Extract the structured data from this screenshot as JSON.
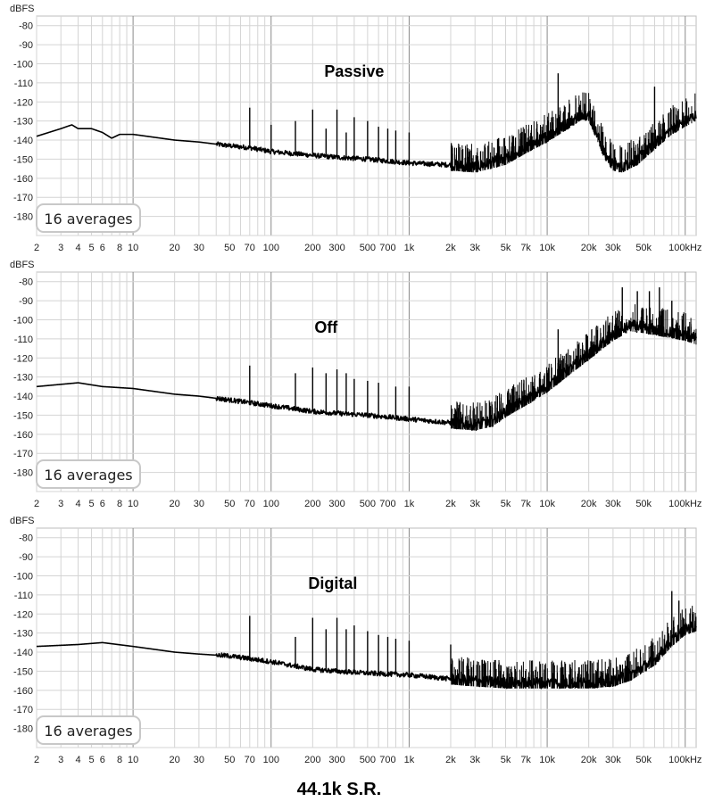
{
  "caption": "44.1k S.R.",
  "chart_data": [
    {
      "type": "line",
      "title": "Passive",
      "ylabel": "dBFS",
      "badge": "16 averages",
      "x_scale": "log",
      "xlim": [
        2,
        120000
      ],
      "ylim": [
        -190,
        -75
      ],
      "yticks": [
        -80,
        -90,
        -100,
        -110,
        -120,
        -130,
        -140,
        -150,
        -160,
        -170,
        -180
      ],
      "xticks": [
        {
          "value": 2,
          "label": "2"
        },
        {
          "value": 3,
          "label": "3"
        },
        {
          "value": 4,
          "label": "4"
        },
        {
          "value": 5,
          "label": "5"
        },
        {
          "value": 6,
          "label": "6"
        },
        {
          "value": 8,
          "label": "8"
        },
        {
          "value": 10,
          "label": "10"
        },
        {
          "value": 20,
          "label": "20"
        },
        {
          "value": 30,
          "label": "30"
        },
        {
          "value": 50,
          "label": "50"
        },
        {
          "value": 70,
          "label": "70"
        },
        {
          "value": 100,
          "label": "100"
        },
        {
          "value": 200,
          "label": "200"
        },
        {
          "value": 300,
          "label": "300"
        },
        {
          "value": 500,
          "label": "500"
        },
        {
          "value": 700,
          "label": "700"
        },
        {
          "value": 1000,
          "label": "1k"
        },
        {
          "value": 2000,
          "label": "2k"
        },
        {
          "value": 3000,
          "label": "3k"
        },
        {
          "value": 5000,
          "label": "5k"
        },
        {
          "value": 7000,
          "label": "7k"
        },
        {
          "value": 10000,
          "label": "10k"
        },
        {
          "value": 20000,
          "label": "20k"
        },
        {
          "value": 30000,
          "label": "30k"
        },
        {
          "value": 50000,
          "label": "50k"
        },
        {
          "value": 100000,
          "label": "100kHz"
        }
      ],
      "floor": [
        [
          2,
          -138
        ],
        [
          3,
          -134
        ],
        [
          3.6,
          -132
        ],
        [
          4,
          -134
        ],
        [
          5,
          -134
        ],
        [
          6,
          -136
        ],
        [
          7,
          -139
        ],
        [
          8,
          -137
        ],
        [
          10,
          -137
        ],
        [
          20,
          -140
        ],
        [
          30,
          -141
        ],
        [
          50,
          -143
        ],
        [
          70,
          -144
        ],
        [
          100,
          -146
        ],
        [
          200,
          -148
        ],
        [
          300,
          -149
        ],
        [
          500,
          -150
        ],
        [
          1000,
          -152
        ],
        [
          2000,
          -153
        ],
        [
          3000,
          -154
        ],
        [
          5000,
          -150
        ],
        [
          7000,
          -144
        ],
        [
          10000,
          -138
        ],
        [
          15000,
          -130
        ],
        [
          18000,
          -126
        ],
        [
          20000,
          -127
        ],
        [
          23000,
          -137
        ],
        [
          26000,
          -147
        ],
        [
          30000,
          -153
        ],
        [
          35000,
          -154
        ],
        [
          45000,
          -150
        ],
        [
          60000,
          -142
        ],
        [
          80000,
          -134
        ],
        [
          100000,
          -130
        ],
        [
          120000,
          -127
        ]
      ],
      "spikes": [
        [
          70,
          -123
        ],
        [
          100,
          -132
        ],
        [
          150,
          -130
        ],
        [
          200,
          -124
        ],
        [
          250,
          -134
        ],
        [
          300,
          -124
        ],
        [
          350,
          -136
        ],
        [
          400,
          -128
        ],
        [
          500,
          -130
        ],
        [
          600,
          -133
        ],
        [
          700,
          -134
        ],
        [
          800,
          -135
        ],
        [
          1000,
          -136
        ],
        [
          12000,
          -105
        ],
        [
          60000,
          -112
        ]
      ],
      "noisy_band": [
        2000,
        120000
      ]
    },
    {
      "type": "line",
      "title": "Off",
      "ylabel": "dBFS",
      "badge": "16 averages",
      "x_scale": "log",
      "xlim": [
        2,
        120000
      ],
      "ylim": [
        -190,
        -75
      ],
      "yticks": [
        -80,
        -90,
        -100,
        -110,
        -120,
        -130,
        -140,
        -150,
        -160,
        -170,
        -180
      ],
      "xticks": [
        {
          "value": 2,
          "label": "2"
        },
        {
          "value": 3,
          "label": "3"
        },
        {
          "value": 4,
          "label": "4"
        },
        {
          "value": 5,
          "label": "5"
        },
        {
          "value": 6,
          "label": "6"
        },
        {
          "value": 8,
          "label": "8"
        },
        {
          "value": 10,
          "label": "10"
        },
        {
          "value": 20,
          "label": "20"
        },
        {
          "value": 30,
          "label": "30"
        },
        {
          "value": 50,
          "label": "50"
        },
        {
          "value": 70,
          "label": "70"
        },
        {
          "value": 100,
          "label": "100"
        },
        {
          "value": 200,
          "label": "200"
        },
        {
          "value": 300,
          "label": "300"
        },
        {
          "value": 500,
          "label": "500"
        },
        {
          "value": 700,
          "label": "700"
        },
        {
          "value": 1000,
          "label": "1k"
        },
        {
          "value": 2000,
          "label": "2k"
        },
        {
          "value": 3000,
          "label": "3k"
        },
        {
          "value": 5000,
          "label": "5k"
        },
        {
          "value": 7000,
          "label": "7k"
        },
        {
          "value": 10000,
          "label": "10k"
        },
        {
          "value": 20000,
          "label": "20k"
        },
        {
          "value": 30000,
          "label": "30k"
        },
        {
          "value": 50000,
          "label": "50k"
        },
        {
          "value": 100000,
          "label": "100kHz"
        }
      ],
      "floor": [
        [
          2,
          -135
        ],
        [
          4,
          -133
        ],
        [
          6,
          -135
        ],
        [
          10,
          -136
        ],
        [
          20,
          -139
        ],
        [
          30,
          -140
        ],
        [
          50,
          -142
        ],
        [
          100,
          -145
        ],
        [
          200,
          -148
        ],
        [
          300,
          -149
        ],
        [
          500,
          -150
        ],
        [
          1000,
          -152
        ],
        [
          2000,
          -154
        ],
        [
          3000,
          -155
        ],
        [
          4000,
          -153
        ],
        [
          5000,
          -148
        ],
        [
          7000,
          -142
        ],
        [
          10000,
          -135
        ],
        [
          20000,
          -118
        ],
        [
          30000,
          -108
        ],
        [
          40000,
          -103
        ],
        [
          50000,
          -104
        ],
        [
          70000,
          -106
        ],
        [
          100000,
          -108
        ],
        [
          120000,
          -110
        ]
      ],
      "spikes": [
        [
          70,
          -124
        ],
        [
          150,
          -128
        ],
        [
          200,
          -125
        ],
        [
          250,
          -128
        ],
        [
          300,
          -126
        ],
        [
          350,
          -128
        ],
        [
          400,
          -131
        ],
        [
          500,
          -132
        ],
        [
          600,
          -133
        ],
        [
          800,
          -135
        ],
        [
          1000,
          -135
        ],
        [
          12000,
          -105
        ],
        [
          35000,
          -83
        ],
        [
          45000,
          -85
        ],
        [
          55000,
          -85
        ],
        [
          65000,
          -83
        ],
        [
          80000,
          -90
        ]
      ],
      "noisy_band": [
        2000,
        120000
      ]
    },
    {
      "type": "line",
      "title": "Digital",
      "ylabel": "dBFS",
      "badge": "16 averages",
      "x_scale": "log",
      "xlim": [
        2,
        120000
      ],
      "ylim": [
        -190,
        -75
      ],
      "yticks": [
        -80,
        -90,
        -100,
        -110,
        -120,
        -130,
        -140,
        -150,
        -160,
        -170,
        -180
      ],
      "xticks": [
        {
          "value": 2,
          "label": "2"
        },
        {
          "value": 3,
          "label": "3"
        },
        {
          "value": 4,
          "label": "4"
        },
        {
          "value": 5,
          "label": "5"
        },
        {
          "value": 6,
          "label": "6"
        },
        {
          "value": 8,
          "label": "8"
        },
        {
          "value": 10,
          "label": "10"
        },
        {
          "value": 20,
          "label": "20"
        },
        {
          "value": 30,
          "label": "30"
        },
        {
          "value": 50,
          "label": "50"
        },
        {
          "value": 70,
          "label": "70"
        },
        {
          "value": 100,
          "label": "100"
        },
        {
          "value": 200,
          "label": "200"
        },
        {
          "value": 300,
          "label": "300"
        },
        {
          "value": 500,
          "label": "500"
        },
        {
          "value": 700,
          "label": "700"
        },
        {
          "value": 1000,
          "label": "1k"
        },
        {
          "value": 2000,
          "label": "2k"
        },
        {
          "value": 3000,
          "label": "3k"
        },
        {
          "value": 5000,
          "label": "5k"
        },
        {
          "value": 7000,
          "label": "7k"
        },
        {
          "value": 10000,
          "label": "10k"
        },
        {
          "value": 20000,
          "label": "20k"
        },
        {
          "value": 30000,
          "label": "30k"
        },
        {
          "value": 50000,
          "label": "50k"
        },
        {
          "value": 100000,
          "label": "100kHz"
        }
      ],
      "floor": [
        [
          2,
          -137
        ],
        [
          4,
          -136
        ],
        [
          6,
          -135
        ],
        [
          10,
          -137
        ],
        [
          20,
          -140
        ],
        [
          30,
          -141
        ],
        [
          50,
          -142
        ],
        [
          100,
          -145
        ],
        [
          200,
          -149
        ],
        [
          300,
          -150
        ],
        [
          500,
          -151
        ],
        [
          1000,
          -152
        ],
        [
          2000,
          -154
        ],
        [
          3000,
          -155
        ],
        [
          5000,
          -156
        ],
        [
          10000,
          -156
        ],
        [
          20000,
          -156
        ],
        [
          30000,
          -155
        ],
        [
          40000,
          -152
        ],
        [
          60000,
          -144
        ],
        [
          80000,
          -134
        ],
        [
          100000,
          -128
        ],
        [
          120000,
          -126
        ]
      ],
      "spikes": [
        [
          70,
          -121
        ],
        [
          150,
          -132
        ],
        [
          200,
          -122
        ],
        [
          250,
          -128
        ],
        [
          300,
          -122
        ],
        [
          350,
          -128
        ],
        [
          400,
          -126
        ],
        [
          500,
          -129
        ],
        [
          600,
          -131
        ],
        [
          700,
          -132
        ],
        [
          800,
          -133
        ],
        [
          1000,
          -134
        ],
        [
          2000,
          -136
        ],
        [
          80000,
          -108
        ],
        [
          90000,
          -113
        ]
      ],
      "noisy_band": [
        2000,
        120000
      ]
    }
  ]
}
